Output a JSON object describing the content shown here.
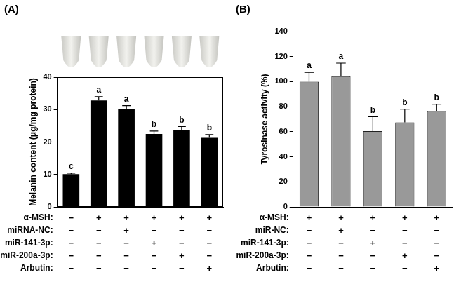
{
  "chart_data": [
    {
      "type": "bar",
      "panel": "(A)",
      "y_label": "Melanin content (μg/mg protein)",
      "categories": [
        null,
        null,
        null,
        null,
        null,
        null
      ],
      "values": [
        10.1,
        32.8,
        30.2,
        22.5,
        23.7,
        21.3
      ],
      "errors": [
        0.3,
        1.2,
        1.0,
        0.9,
        1.1,
        1.0
      ],
      "letters": [
        "c",
        "a",
        "a",
        "b",
        "b",
        "b"
      ],
      "color": "#000000",
      "ylim": [
        0,
        40
      ],
      "yticks": [
        0,
        10,
        20,
        30,
        40
      ],
      "grid": false,
      "treatments": [
        {
          "label": "α-MSH:",
          "signs": [
            "−",
            "+",
            "+",
            "+",
            "+",
            "+"
          ]
        },
        {
          "label": "miRNA-NC:",
          "signs": [
            "−",
            "−",
            "+",
            "−",
            "−",
            "−"
          ]
        },
        {
          "label": "miR-141-3p:",
          "signs": [
            "−",
            "−",
            "−",
            "+",
            "−",
            "−"
          ]
        },
        {
          "label": "miR-200a-3p:",
          "signs": [
            "−",
            "−",
            "−",
            "−",
            "+",
            "−"
          ]
        },
        {
          "label": "Arbutin:",
          "signs": [
            "−",
            "−",
            "−",
            "−",
            "−",
            "+"
          ]
        }
      ]
    },
    {
      "type": "bar",
      "panel": "(B)",
      "y_label": "Tyrosinase activity (%)",
      "categories": [
        null,
        null,
        null,
        null,
        null
      ],
      "values": [
        100,
        104.3,
        60.5,
        67.5,
        76.5
      ],
      "errors": [
        7.5,
        10.5,
        11.5,
        10.5,
        5.5
      ],
      "letters": [
        "a",
        "a",
        "b",
        "b",
        "b"
      ],
      "color": "#999999",
      "ylim": [
        0,
        140
      ],
      "yticks": [
        0,
        20,
        40,
        60,
        80,
        100,
        120,
        140
      ],
      "grid": false,
      "treatments": [
        {
          "label": "α-MSH:",
          "signs": [
            "+",
            "+",
            "+",
            "+",
            "+"
          ]
        },
        {
          "label": "miR-NC:",
          "signs": [
            "−",
            "+",
            "−",
            "−",
            "−"
          ]
        },
        {
          "label": "miR-141-3p:",
          "signs": [
            "−",
            "−",
            "+",
            "−",
            "−"
          ]
        },
        {
          "label": "miR-200a-3p:",
          "signs": [
            "−",
            "−",
            "−",
            "+",
            "−"
          ]
        },
        {
          "label": "Arbutin:",
          "signs": [
            "−",
            "−",
            "−",
            "−",
            "+"
          ]
        }
      ]
    }
  ]
}
